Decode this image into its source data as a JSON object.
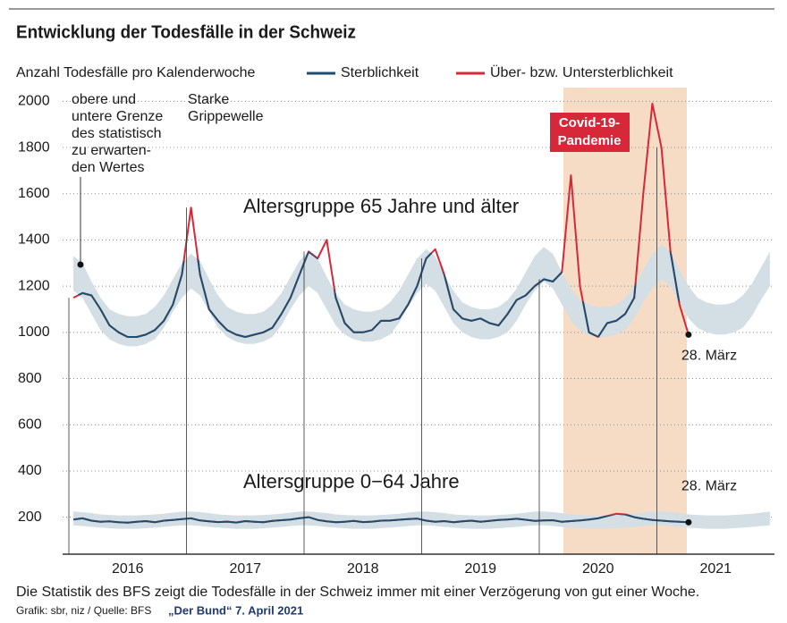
{
  "chart_data": {
    "type": "line",
    "title": "Entwicklung der Todesfälle in der Schweiz",
    "y_label": "Anzahl Todesfälle pro Kalenderwoche",
    "legend_position": "top",
    "legend": [
      {
        "name": "Sterblichkeit",
        "color": "#1d4e6e"
      },
      {
        "name": "Über- bzw. Untersterblichkeit",
        "color": "#d62839"
      }
    ],
    "band": {
      "label": [
        "obere und",
        "untere Grenze",
        "des statistisch",
        "zu erwarten-",
        "den Wertes"
      ],
      "color": "#d3dfe5"
    },
    "categories": [
      null,
      null,
      null,
      null,
      null,
      null,
      "2016",
      null,
      null,
      null,
      null,
      null,
      null,
      null,
      null,
      null,
      null,
      null,
      null,
      "2017",
      null,
      null,
      null,
      null,
      null,
      null,
      null,
      null,
      null,
      null,
      null,
      null,
      "2018",
      null,
      null,
      null,
      null,
      null,
      null,
      null,
      null,
      null,
      null,
      null,
      null,
      "2019",
      null,
      null,
      null,
      null,
      null,
      null,
      null,
      null,
      null,
      null,
      null,
      null,
      "2020",
      null,
      null,
      null,
      null,
      null,
      null,
      null,
      null,
      null,
      null,
      null,
      null,
      "2021",
      null,
      null,
      null,
      null,
      null,
      null
    ],
    "ylim": [
      40,
      2040
    ],
    "yticks": [
      200,
      400,
      600,
      800,
      1000,
      1200,
      1400,
      1600,
      1800,
      2000
    ],
    "grid": true,
    "groups": [
      {
        "label": "Altersgruppe 65 Jahre und älter",
        "end_label": "28. März",
        "values": [
          1150,
          1170,
          1160,
          1100,
          1030,
          1000,
          980,
          980,
          990,
          1010,
          1050,
          1120,
          1250,
          1540,
          1250,
          1100,
          1050,
          1010,
          990,
          980,
          990,
          1000,
          1020,
          1080,
          1150,
          1250,
          1350,
          1320,
          1400,
          1150,
          1040,
          1000,
          1000,
          1010,
          1050,
          1050,
          1060,
          1120,
          1200,
          1320,
          1360,
          1250,
          1100,
          1060,
          1050,
          1060,
          1040,
          1030,
          1080,
          1140,
          1160,
          1200,
          1230,
          1220,
          1260,
          1680,
          1200,
          1000,
          980,
          1040,
          1050,
          1080,
          1150,
          1600,
          1990,
          1800,
          1350,
          1120,
          990,
          null,
          null,
          null,
          null,
          null,
          null,
          null,
          null,
          null
        ],
        "upper": [
          1330,
          1300,
          1220,
          1150,
          1100,
          1080,
          1070,
          1070,
          1080,
          1110,
          1160,
          1230,
          1300,
          1340,
          1310,
          1230,
          1160,
          1110,
          1090,
          1080,
          1080,
          1090,
          1120,
          1170,
          1240,
          1310,
          1350,
          1320,
          1240,
          1170,
          1120,
          1100,
          1090,
          1090,
          1100,
          1130,
          1180,
          1250,
          1320,
          1360,
          1330,
          1250,
          1180,
          1130,
          1110,
          1100,
          1100,
          1110,
          1140,
          1190,
          1260,
          1330,
          1370,
          1340,
          1260,
          1190,
          1140,
          1120,
          1110,
          1110,
          1120,
          1150,
          1200,
          1270,
          1340,
          1380,
          1350,
          1270,
          1200,
          1150,
          1130,
          1120,
          1120,
          1130,
          1160,
          1210,
          1280,
          1350
        ],
        "lower": [
          1180,
          1150,
          1080,
          1010,
          970,
          950,
          940,
          940,
          950,
          970,
          1020,
          1090,
          1150,
          1190,
          1160,
          1090,
          1020,
          980,
          960,
          950,
          950,
          960,
          980,
          1030,
          1100,
          1160,
          1200,
          1170,
          1100,
          1030,
          990,
          970,
          960,
          960,
          970,
          990,
          1040,
          1110,
          1170,
          1210,
          1180,
          1110,
          1040,
          1000,
          980,
          970,
          970,
          980,
          1000,
          1050,
          1120,
          1180,
          1220,
          1190,
          1120,
          1050,
          1010,
          990,
          980,
          980,
          990,
          1010,
          1060,
          1130,
          1190,
          1230,
          1200,
          1130,
          1060,
          1020,
          1000,
          990,
          990,
          1000,
          1020,
          1070,
          1140,
          1200
        ]
      },
      {
        "label": "Altersgruppe 0−64 Jahre",
        "end_label": "28. März",
        "values": [
          190,
          195,
          185,
          180,
          182,
          178,
          176,
          180,
          183,
          178,
          185,
          188,
          192,
          195,
          186,
          182,
          179,
          181,
          177,
          183,
          180,
          178,
          184,
          187,
          190,
          196,
          200,
          188,
          182,
          178,
          180,
          184,
          179,
          181,
          185,
          186,
          189,
          192,
          194,
          185,
          180,
          183,
          178,
          182,
          185,
          180,
          184,
          188,
          190,
          193,
          189,
          184,
          186,
          187,
          180,
          183,
          186,
          190,
          195,
          205,
          215,
          212,
          200,
          193,
          188,
          185,
          182,
          180,
          178,
          null,
          null,
          null,
          null,
          null,
          null,
          null,
          null,
          null
        ],
        "upper": [
          225,
          222,
          218,
          212,
          210,
          208,
          208,
          208,
          210,
          212,
          215,
          220,
          224,
          225,
          222,
          218,
          212,
          210,
          208,
          208,
          208,
          210,
          212,
          215,
          220,
          224,
          225,
          222,
          218,
          212,
          210,
          208,
          208,
          208,
          210,
          212,
          215,
          220,
          224,
          225,
          222,
          218,
          212,
          210,
          208,
          208,
          208,
          210,
          212,
          215,
          220,
          224,
          225,
          222,
          218,
          212,
          210,
          208,
          208,
          208,
          210,
          212,
          215,
          220,
          224,
          225,
          222,
          218,
          212,
          210,
          208,
          208,
          208,
          210,
          212,
          215,
          220,
          224
        ],
        "lower": [
          165,
          162,
          158,
          155,
          152,
          150,
          150,
          150,
          152,
          155,
          158,
          162,
          165,
          165,
          162,
          158,
          155,
          152,
          150,
          150,
          150,
          152,
          155,
          158,
          162,
          165,
          165,
          162,
          158,
          155,
          152,
          150,
          150,
          150,
          152,
          155,
          158,
          162,
          165,
          165,
          162,
          158,
          155,
          152,
          150,
          150,
          150,
          152,
          155,
          158,
          162,
          165,
          165,
          162,
          158,
          155,
          152,
          150,
          150,
          150,
          152,
          155,
          158,
          162,
          165,
          165,
          162,
          158,
          155,
          152,
          150,
          150,
          150,
          152,
          155,
          158,
          162,
          165
        ]
      }
    ],
    "annotations": [
      {
        "text": [
          "Starke",
          "Grippewelle"
        ]
      },
      {
        "text": [
          "Covid-19-",
          "Pandemie"
        ]
      }
    ],
    "note": "Die Statistik des BFS zeigt die Todesfälle in der Schweiz immer mit einer Verzögerung von gut einer Woche.",
    "source": "Grafik: sbr, niz / Quelle: BFS",
    "publication": "„Der Bund“ 7. April 2021"
  }
}
